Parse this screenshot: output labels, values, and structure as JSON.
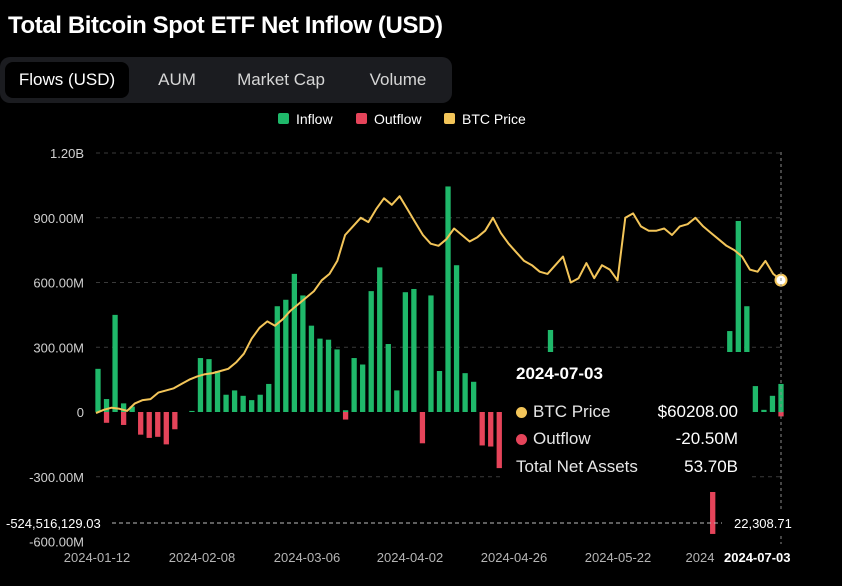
{
  "title": "Total Bitcoin Spot ETF Net Inflow (USD)",
  "tabs": [
    {
      "label": "Flows (USD)",
      "active": true
    },
    {
      "label": "AUM",
      "active": false
    },
    {
      "label": "Market Cap",
      "active": false
    },
    {
      "label": "Volume",
      "active": false
    }
  ],
  "legend": [
    {
      "label": "Inflow",
      "color": "#1fb86a"
    },
    {
      "label": "Outflow",
      "color": "#e5445a"
    },
    {
      "label": "BTC Price",
      "color": "#f3c559"
    }
  ],
  "tooltip": {
    "date": "2024-07-03",
    "rows": [
      {
        "label": "BTC Price",
        "value": "$60208.00",
        "dot": "#f3c559"
      },
      {
        "label": "Outflow",
        "value": "-20.50M",
        "dot": "#e5445a"
      },
      {
        "label": "Total Net Assets",
        "value": "53.70B",
        "dot": ""
      }
    ]
  },
  "crosshair": {
    "y_value_label": "-524,516,129.03",
    "btc_value_label": "22,308.71",
    "date_label": "2024-07-03"
  },
  "chart_data": {
    "type": "bar",
    "title": "Total Bitcoin Spot ETF Net Inflow (USD)",
    "y_axis": {
      "min": -600,
      "max": 1200,
      "unit": "USD millions",
      "ticks": [
        "1.20B",
        "900.00M",
        "600.00M",
        "300.00M",
        "0",
        "-300.00M",
        "-600.00M"
      ]
    },
    "x_axis": {
      "start": "2024-01-11",
      "end": "2024-07-03",
      "ticks": [
        "2024-01-12",
        "2024-02-08",
        "2024-03-06",
        "2024-04-02",
        "2024-04-26",
        "2024-05-22",
        "2024",
        "2024-07-03"
      ]
    },
    "grid": true,
    "legend_position": "top-center",
    "inflow_series": {
      "name": "Inflow",
      "values_musd": [
        200,
        60,
        450,
        40,
        25,
        0,
        0,
        0,
        0,
        0,
        0,
        5,
        250,
        245,
        190,
        80,
        100,
        75,
        55,
        80,
        130,
        490,
        520,
        640,
        540,
        400,
        340,
        335,
        290,
        8,
        250,
        220,
        560,
        670,
        315,
        100,
        555,
        570,
        0,
        540,
        190,
        1045,
        680,
        180,
        140,
        0,
        0,
        0,
        0,
        0,
        0,
        15,
        30,
        380,
        240,
        0,
        175,
        25,
        60,
        10,
        200,
        140,
        15,
        0,
        0,
        0,
        0,
        0,
        0,
        55,
        60,
        30,
        0,
        0,
        375,
        885,
        490,
        120,
        10,
        75,
        130
      ]
    },
    "outflow_series": {
      "name": "Outflow",
      "values_musd": [
        0,
        -50,
        0,
        -60,
        0,
        -105,
        -120,
        -115,
        -150,
        -80,
        0,
        0,
        0,
        0,
        0,
        0,
        0,
        0,
        0,
        0,
        0,
        0,
        0,
        0,
        0,
        0,
        0,
        0,
        0,
        -35,
        0,
        0,
        0,
        0,
        0,
        0,
        0,
        0,
        -145,
        0,
        0,
        0,
        0,
        0,
        0,
        -155,
        -160,
        -260,
        -325,
        -130,
        -95,
        -60,
        0,
        0,
        0,
        -90,
        0,
        0,
        0,
        -30,
        0,
        0,
        -225,
        -15,
        -40,
        -60,
        -85,
        -120,
        -130,
        0,
        0,
        0,
        -565,
        0,
        0,
        0,
        0,
        0,
        0,
        0,
        -20.5
      ]
    },
    "btc_price_series": {
      "name": "BTC Price",
      "values_musd_axis": [
        -5,
        10,
        20,
        15,
        5,
        40,
        55,
        60,
        90,
        100,
        110,
        130,
        150,
        165,
        175,
        180,
        190,
        200,
        230,
        270,
        340,
        390,
        420,
        400,
        430,
        470,
        500,
        530,
        560,
        610,
        640,
        700,
        820,
        860,
        900,
        880,
        940,
        990,
        960,
        1000,
        940,
        880,
        820,
        780,
        770,
        800,
        850,
        820,
        790,
        810,
        840,
        900,
        830,
        780,
        740,
        700,
        680,
        650,
        640,
        680,
        720,
        600,
        620,
        690,
        620,
        680,
        660,
        610,
        900,
        920,
        860,
        840,
        840,
        850,
        820,
        860,
        870,
        900,
        860,
        830,
        800,
        770,
        750,
        720,
        660,
        650,
        700,
        640,
        611
      ]
    }
  }
}
